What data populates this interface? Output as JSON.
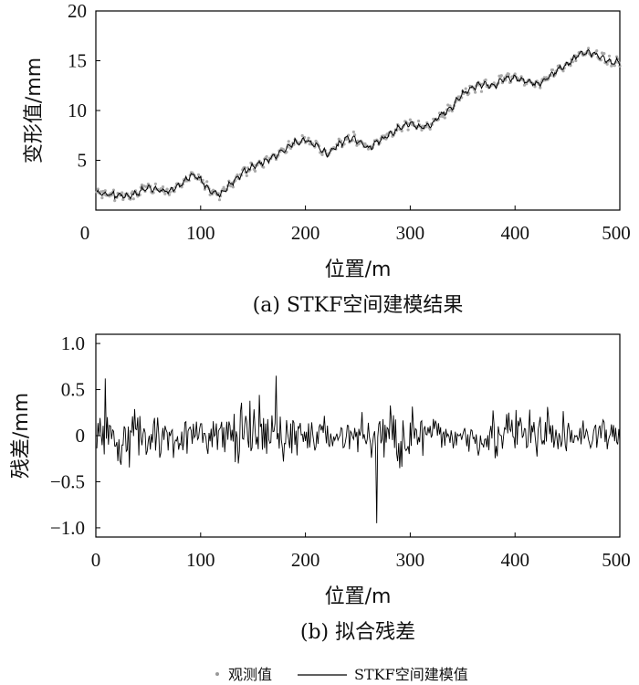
{
  "chart_data": [
    {
      "type": "line",
      "caption": "(a) STKF空间建模结果",
      "xlabel": "位置/m",
      "ylabel": "变形值/mm",
      "xlim": [
        0,
        500
      ],
      "ylim": [
        0,
        20
      ],
      "xticks": [
        0,
        100,
        200,
        300,
        400,
        500
      ],
      "yticks": [
        5,
        10,
        15,
        20
      ],
      "y_axis_tick_label": "20",
      "trend_points": [
        [
          0,
          1.7
        ],
        [
          10,
          1.6
        ],
        [
          20,
          1.5
        ],
        [
          30,
          1.3
        ],
        [
          40,
          1.8
        ],
        [
          50,
          2.2
        ],
        [
          60,
          2.0
        ],
        [
          70,
          1.9
        ],
        [
          80,
          2.4
        ],
        [
          90,
          3.5
        ],
        [
          100,
          3.1
        ],
        [
          110,
          1.8
        ],
        [
          120,
          1.6
        ],
        [
          130,
          2.8
        ],
        [
          140,
          3.8
        ],
        [
          150,
          4.4
        ],
        [
          160,
          4.8
        ],
        [
          170,
          5.4
        ],
        [
          180,
          6.0
        ],
        [
          190,
          6.8
        ],
        [
          200,
          7.0
        ],
        [
          210,
          6.5
        ],
        [
          220,
          5.6
        ],
        [
          230,
          6.4
        ],
        [
          240,
          7.3
        ],
        [
          250,
          7.0
        ],
        [
          260,
          6.2
        ],
        [
          270,
          6.9
        ],
        [
          280,
          7.5
        ],
        [
          290,
          8.2
        ],
        [
          300,
          8.8
        ],
        [
          310,
          8.2
        ],
        [
          320,
          8.6
        ],
        [
          330,
          9.6
        ],
        [
          340,
          10.4
        ],
        [
          350,
          11.6
        ],
        [
          360,
          12.4
        ],
        [
          370,
          12.7
        ],
        [
          380,
          12.5
        ],
        [
          390,
          13.2
        ],
        [
          400,
          13.2
        ],
        [
          410,
          13.0
        ],
        [
          420,
          12.7
        ],
        [
          430,
          13.2
        ],
        [
          440,
          14.0
        ],
        [
          450,
          14.6
        ],
        [
          460,
          15.6
        ],
        [
          470,
          15.9
        ],
        [
          480,
          15.5
        ],
        [
          490,
          14.9
        ],
        [
          500,
          14.8
        ]
      ],
      "series": [
        {
          "name": "观测值",
          "style": "scatter",
          "color": "#aaaaaa"
        },
        {
          "name": "STKF空间建模值",
          "style": "line",
          "color": "#000000"
        }
      ]
    },
    {
      "type": "line",
      "caption": "(b) 拟合残差",
      "xlabel": "位置/m",
      "ylabel": "残差/mm",
      "xlim": [
        0,
        500
      ],
      "ylim": [
        -1.1,
        1.1
      ],
      "xticks": [
        0,
        100,
        200,
        300,
        400,
        500
      ],
      "yticks": [
        -1.0,
        -0.5,
        0,
        0.5,
        1.0
      ],
      "ytick_labels": [
        "−1.0",
        "−0.5",
        "0",
        "0.5",
        "1.0"
      ],
      "residual_range": [
        -0.95,
        0.65
      ],
      "notable_points": [
        [
          9,
          0.62
        ],
        [
          172,
          0.65
        ],
        [
          268,
          -0.95
        ]
      ],
      "series": [
        {
          "name": "STKF空间建模值",
          "color": "#000000"
        }
      ]
    }
  ],
  "legend": {
    "items": [
      {
        "label": "观测值",
        "marker": "dot"
      },
      {
        "label": "STKF空间建模值",
        "marker": "line"
      }
    ]
  }
}
